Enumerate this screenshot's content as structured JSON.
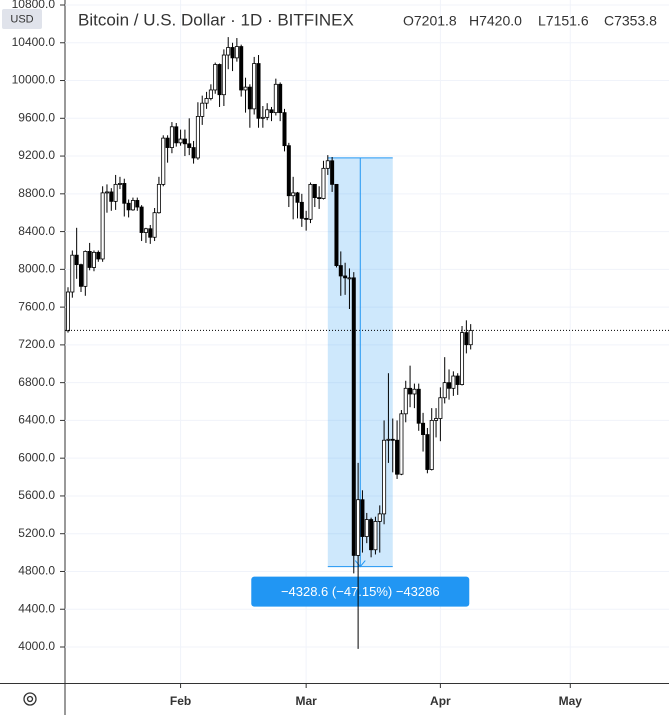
{
  "header": {
    "symbol": "Bitcoin / U.S. Dollar · 1D · BITFINEX",
    "ohlc_labels": [
      "O7201.8",
      "H7420.0",
      "L7151.6",
      "C7353.8"
    ],
    "currency": "USD"
  },
  "chart_data": {
    "type": "candlestick",
    "categories": [
      null,
      null,
      null,
      null,
      null,
      null,
      null,
      null,
      null,
      null,
      null,
      null,
      null,
      null,
      null,
      null,
      null,
      null,
      null,
      null,
      null,
      null,
      null,
      null,
      null,
      null,
      "Feb",
      null,
      null,
      null,
      null,
      null,
      null,
      null,
      null,
      null,
      null,
      null,
      null,
      null,
      null,
      null,
      null,
      null,
      null,
      null,
      null,
      null,
      null,
      null,
      null,
      null,
      null,
      null,
      null,
      "Mar",
      null,
      null,
      null,
      null,
      null,
      null,
      null,
      null,
      null,
      null,
      null,
      null,
      null,
      null,
      null,
      null,
      null,
      null,
      null,
      null,
      null,
      null,
      null,
      null,
      null,
      null,
      null,
      null,
      null,
      null,
      "Apr",
      null,
      null,
      null,
      null,
      null,
      null,
      null,
      null,
      null,
      null,
      null,
      null,
      null,
      null,
      null,
      null,
      null,
      null,
      null,
      null,
      null,
      null,
      null,
      null,
      null,
      null,
      null,
      null,
      null,
      "May"
    ],
    "open": [
      7350,
      7760,
      8150,
      8050,
      7820,
      8190,
      8020,
      8180,
      8110,
      8810,
      8820,
      8720,
      8900,
      8910,
      8700,
      8630,
      8730,
      8660,
      8390,
      8430,
      8340,
      8600,
      8900,
      9390,
      9290,
      9510,
      9340,
      9380,
      9330,
      9290,
      9180,
      9620,
      9760,
      9810,
      9900,
      10170,
      9850,
      10270,
      10350,
      10240,
      10360,
      9900,
      9930,
      9700,
      10180,
      9600,
      9610,
      9690,
      9660,
      9960,
      9660,
      9310,
      8780,
      8810,
      8710,
      8540,
      8530,
      8900,
      8760,
      8750,
      9070,
      9150,
      8900,
      8040,
      7930,
      7910,
      7910,
      4970,
      5560,
      5170,
      5350,
      5030,
      5330,
      5410,
      6190,
      6200,
      6190,
      5830,
      6470,
      6740,
      6680,
      6730,
      6370,
      6250,
      5880,
      6400,
      6420,
      6640,
      6800,
      6740,
      6870,
      6780,
      7330,
      7201.8,
      null,
      null,
      null,
      null,
      null,
      null,
      null,
      null,
      null,
      null,
      null,
      null,
      null,
      null,
      null,
      null,
      null,
      null,
      null,
      null,
      null,
      null,
      null
    ],
    "high": [
      7810,
      8200,
      8440,
      8060,
      8200,
      8280,
      8200,
      8200,
      8880,
      8900,
      8860,
      9000,
      8980,
      8960,
      8740,
      8760,
      8760,
      8680,
      8440,
      8470,
      8650,
      8980,
      9420,
      9420,
      9560,
      9550,
      9480,
      9480,
      9600,
      9360,
      9770,
      9840,
      9880,
      9960,
      10190,
      10180,
      10330,
      10460,
      10400,
      10450,
      10380,
      10030,
      9960,
      10250,
      10270,
      9730,
      9760,
      9720,
      10020,
      9980,
      9700,
      9340,
      8980,
      8820,
      8800,
      8620,
      8920,
      8900,
      8880,
      9150,
      9210,
      9190,
      8900,
      8190,
      8070,
      8010,
      7970,
      5950,
      5660,
      5420,
      5370,
      5380,
      5500,
      6400,
      6900,
      6420,
      6400,
      6510,
      6820,
      6980,
      6790,
      6790,
      6480,
      6320,
      6530,
      6530,
      6750,
      7070,
      6940,
      6920,
      6900,
      7400,
      7460,
      7420,
      null,
      null,
      null,
      null,
      null,
      null,
      null,
      null,
      null,
      null,
      null,
      null,
      null,
      null,
      null,
      null,
      null,
      null,
      null,
      null,
      null,
      null,
      null
    ],
    "low": [
      7330,
      7700,
      7900,
      7760,
      7720,
      7990,
      7980,
      8080,
      8080,
      8600,
      8620,
      8630,
      8850,
      8560,
      8550,
      8620,
      8620,
      8300,
      8280,
      8270,
      8300,
      8590,
      8880,
      9130,
      9230,
      9300,
      9310,
      9200,
      9210,
      9120,
      9160,
      9530,
      9700,
      9790,
      9860,
      9720,
      9730,
      10120,
      10100,
      10200,
      9830,
      9660,
      9500,
      9640,
      9500,
      9500,
      9580,
      9570,
      9630,
      9570,
      9250,
      8660,
      8530,
      8540,
      8450,
      8410,
      8490,
      8660,
      8640,
      8740,
      9000,
      8820,
      8020,
      7720,
      7730,
      7580,
      4780,
      3980,
      5000,
      5100,
      4950,
      4980,
      5000,
      5300,
      5950,
      5850,
      5780,
      5820,
      6380,
      6540,
      6530,
      6290,
      6070,
      5840,
      5870,
      6220,
      6180,
      6580,
      6620,
      6660,
      6670,
      6770,
      7110,
      7151.6,
      null,
      null,
      null,
      null,
      null,
      null,
      null,
      null,
      null,
      null,
      null,
      null,
      null,
      null,
      null,
      null,
      null,
      null,
      null,
      null,
      null,
      null,
      null
    ],
    "close": [
      7760,
      8150,
      8050,
      7820,
      8190,
      8020,
      8180,
      8110,
      8810,
      8820,
      8720,
      8900,
      8910,
      8700,
      8630,
      8730,
      8660,
      8390,
      8430,
      8340,
      8600,
      8900,
      9390,
      9290,
      9510,
      9340,
      9380,
      9330,
      9290,
      9180,
      9620,
      9760,
      9810,
      9900,
      10170,
      9850,
      10270,
      10350,
      10240,
      10360,
      9900,
      9930,
      9700,
      10180,
      9600,
      9610,
      9690,
      9660,
      9960,
      9660,
      9310,
      8780,
      8810,
      8710,
      8540,
      8530,
      8900,
      8760,
      8750,
      9070,
      9150,
      8900,
      8040,
      7930,
      7910,
      7910,
      4970,
      5560,
      5170,
      5350,
      5030,
      5330,
      5410,
      6190,
      6200,
      6190,
      5830,
      6470,
      6740,
      6680,
      6730,
      6370,
      6250,
      5880,
      6400,
      6420,
      6640,
      6800,
      6740,
      6870,
      6780,
      7330,
      7201.8,
      7353.8,
      null,
      null,
      null,
      null,
      null,
      null,
      null,
      null,
      null,
      null,
      null,
      null,
      null,
      null,
      null,
      null,
      null,
      null,
      null,
      null,
      null,
      null,
      null
    ],
    "up_color": "#ffffff",
    "down_color": "#000000",
    "wick_color": "#000000",
    "ylim": [
      4000,
      10800
    ],
    "yticks": [
      {
        "value": 4000,
        "label": "4000.0"
      },
      {
        "value": 4400,
        "label": "4400.0"
      },
      {
        "value": 4800,
        "label": "4800.0"
      },
      {
        "value": 5200,
        "label": "5200.0"
      },
      {
        "value": 5600,
        "label": "5600.0"
      },
      {
        "value": 6000,
        "label": "6000.0"
      },
      {
        "value": 6400,
        "label": "6400.0"
      },
      {
        "value": 6800,
        "label": "6800.0"
      },
      {
        "value": 7200,
        "label": "7200.0"
      },
      {
        "value": 7600,
        "label": "7600.0"
      },
      {
        "value": 8000,
        "label": "8000.0"
      },
      {
        "value": 8400,
        "label": "8400.0"
      },
      {
        "value": 8800,
        "label": "8800.0"
      },
      {
        "value": 9200,
        "label": "9200.0"
      },
      {
        "value": 9600,
        "label": "9600.0"
      },
      {
        "value": 10000,
        "label": "10000.0"
      },
      {
        "value": 10400,
        "label": "10400.0"
      },
      {
        "value": 10800,
        "label": "10800.0"
      }
    ],
    "grid": true,
    "measure": {
      "from_index": 60,
      "to_index": 75,
      "from_price": 9180.2,
      "to_price": 4851.6,
      "label": "−4328.6 (−47.15%) −43286",
      "color": "#2196f3"
    }
  }
}
